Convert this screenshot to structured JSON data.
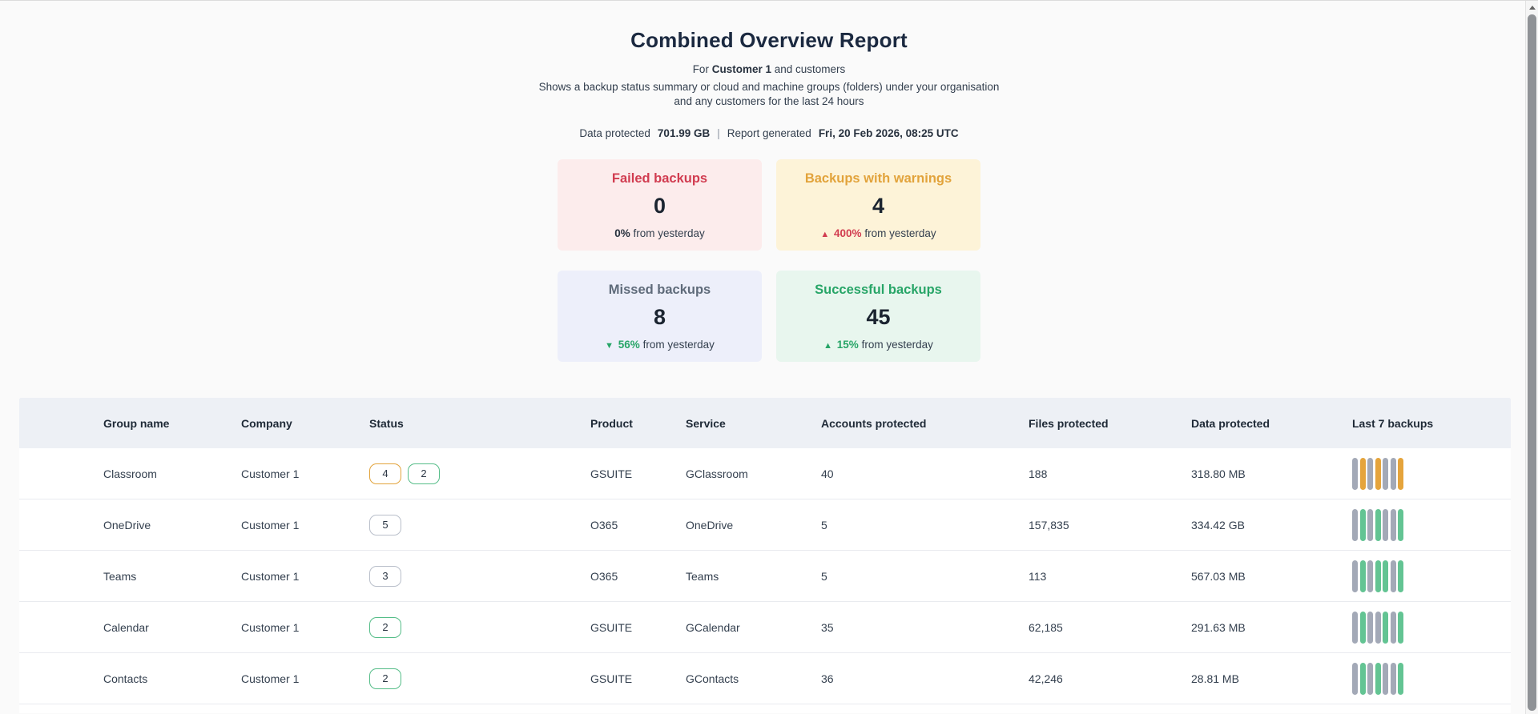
{
  "report": {
    "title": "Combined Overview Report",
    "for_prefix": "For",
    "for_name": "Customer 1",
    "for_suffix": "and customers",
    "description": "Shows a backup status summary or cloud and machine groups (folders) under your organisation and any customers for the last 24 hours",
    "meta": {
      "data_protected_label": "Data protected",
      "data_protected_value": "701.99 GB",
      "generated_label": "Report generated",
      "generated_value": "Fri, 20 Feb 2026, 08:25 UTC",
      "separator": "|"
    }
  },
  "summary_cards": [
    {
      "title": "Failed backups",
      "value": "0",
      "delta_symbol": "",
      "delta_value": "0%",
      "delta_suffix": "from yesterday"
    },
    {
      "title": "Backups with warnings",
      "value": "4",
      "delta_symbol": "▲",
      "delta_value": "400%",
      "delta_suffix": "from yesterday"
    },
    {
      "title": "Missed backups",
      "value": "8",
      "delta_symbol": "▼",
      "delta_value": "56%",
      "delta_suffix": "from yesterday"
    },
    {
      "title": "Successful backups",
      "value": "45",
      "delta_symbol": "▲",
      "delta_value": "15%",
      "delta_suffix": "from yesterday"
    }
  ],
  "colors": {
    "failed_accent": "#d13c50",
    "failed_bg": "#fcecec",
    "warning_accent": "#e2a33b",
    "warning_bg": "#fdf3d8",
    "missed_accent": "#5f6b7a",
    "missed_bg": "#edeffa",
    "success_accent": "#27a567",
    "success_bg": "#e8f6ee",
    "bar_missed": "#a3a9b7",
    "bar_warning": "#e5a43c",
    "bar_success": "#63c493",
    "table_header_bg": "#edf0f5"
  },
  "table": {
    "columns": [
      "Group name",
      "Company",
      "Status",
      "Product",
      "Service",
      "Accounts protected",
      "Files protected",
      "Data protected",
      "Last 7 backups"
    ],
    "rows": [
      {
        "indicator": "warning",
        "group": "Classroom",
        "company": "Customer 1",
        "badges": [
          {
            "value": "4",
            "type": "warning"
          },
          {
            "value": "2",
            "type": "success"
          }
        ],
        "product": "GSUITE",
        "service": "GClassroom",
        "accounts": "40",
        "files": "188",
        "data": "318.80 MB",
        "last7": [
          "miss",
          "warning",
          "miss",
          "warning",
          "miss",
          "miss",
          "warning"
        ]
      },
      {
        "indicator": "missed",
        "group": "OneDrive",
        "company": "Customer 1",
        "badges": [
          {
            "value": "5",
            "type": "neutral"
          }
        ],
        "product": "O365",
        "service": "OneDrive",
        "accounts": "5",
        "files": "157,835",
        "data": "334.42 GB",
        "last7": [
          "miss",
          "ok",
          "miss",
          "ok",
          "miss",
          "miss",
          "ok"
        ]
      },
      {
        "indicator": "missed",
        "group": "Teams",
        "company": "Customer 1",
        "badges": [
          {
            "value": "3",
            "type": "neutral"
          }
        ],
        "product": "O365",
        "service": "Teams",
        "accounts": "5",
        "files": "113",
        "data": "567.03 MB",
        "last7": [
          "miss",
          "ok",
          "miss",
          "ok",
          "ok",
          "miss",
          "ok"
        ]
      },
      {
        "indicator": "success",
        "group": "Calendar",
        "company": "Customer 1",
        "badges": [
          {
            "value": "2",
            "type": "success"
          }
        ],
        "product": "GSUITE",
        "service": "GCalendar",
        "accounts": "35",
        "files": "62,185",
        "data": "291.63 MB",
        "last7": [
          "miss",
          "ok",
          "miss",
          "miss",
          "ok",
          "miss",
          "ok"
        ]
      },
      {
        "indicator": "success",
        "group": "Contacts",
        "company": "Customer 1",
        "badges": [
          {
            "value": "2",
            "type": "success"
          }
        ],
        "product": "GSUITE",
        "service": "GContacts",
        "accounts": "36",
        "files": "42,246",
        "data": "28.81 MB",
        "last7": [
          "miss",
          "ok",
          "miss",
          "ok",
          "miss",
          "miss",
          "ok"
        ]
      }
    ]
  }
}
